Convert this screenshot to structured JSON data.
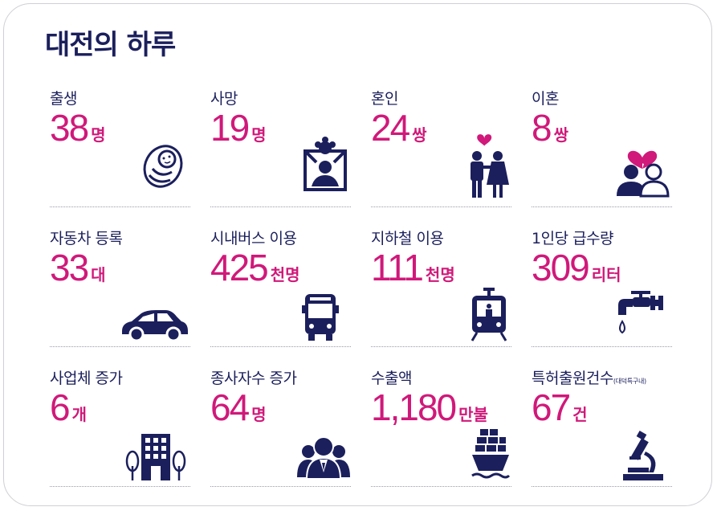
{
  "title": "대전의 하루",
  "colors": {
    "navy": "#1b1f5c",
    "accent": "#d0197a"
  },
  "stats": [
    {
      "label": "출생",
      "value": "38",
      "unit": "명",
      "icon": "baby-icon"
    },
    {
      "label": "사망",
      "value": "19",
      "unit": "명",
      "icon": "memorial-portrait-icon"
    },
    {
      "label": "혼인",
      "value": "24",
      "unit": "쌍",
      "icon": "couple-icon"
    },
    {
      "label": "이혼",
      "value": "8",
      "unit": "쌍",
      "icon": "broken-heart-couple-icon"
    },
    {
      "label": "자동차 등록",
      "value": "33",
      "unit": "대",
      "icon": "car-icon"
    },
    {
      "label": "시내버스 이용",
      "value": "425",
      "unit": "천명",
      "icon": "bus-icon"
    },
    {
      "label": "지하철 이용",
      "value": "111",
      "unit": "천명",
      "icon": "subway-icon"
    },
    {
      "label": "1인당 급수량",
      "value": "309",
      "unit": "리터",
      "icon": "faucet-icon"
    },
    {
      "label": "사업체 증가",
      "value": "6",
      "unit": "개",
      "icon": "building-icon"
    },
    {
      "label": "종사자수 증가",
      "value": "64",
      "unit": "명",
      "icon": "workers-icon"
    },
    {
      "label": "수출액",
      "value": "1,180",
      "unit": "만불",
      "icon": "cargo-ship-icon"
    },
    {
      "label": "특허출원건수",
      "label_note": "(대덕특구내)",
      "value": "67",
      "unit": "건",
      "icon": "microscope-icon"
    }
  ]
}
